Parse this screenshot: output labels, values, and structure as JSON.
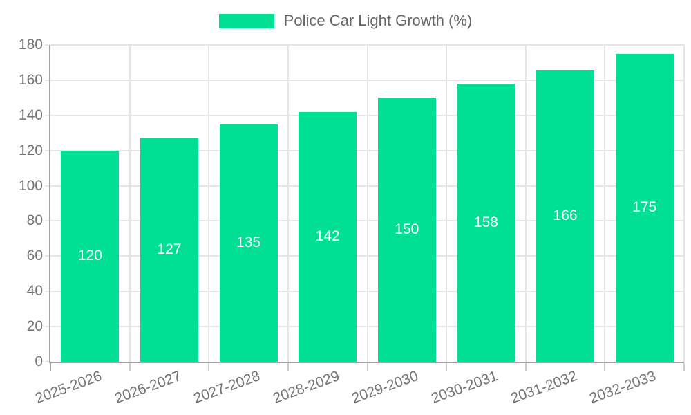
{
  "legend": {
    "label": "Police Car Light Growth (%)"
  },
  "chart_data": {
    "type": "bar",
    "title": "Police Car Light Growth (%)",
    "categories": [
      "2025-2026",
      "2026-2027",
      "2027-2028",
      "2028-2029",
      "2029-2030",
      "2030-2031",
      "2031-2032",
      "2032-2033"
    ],
    "values": [
      120,
      127,
      135,
      142,
      150,
      158,
      166,
      175
    ],
    "xlabel": "",
    "ylabel": "",
    "ylim": [
      0,
      180
    ],
    "yticks": [
      0,
      20,
      40,
      60,
      80,
      100,
      120,
      140,
      160,
      180
    ],
    "grid": true,
    "legend_position": "top-center",
    "value_labels": "inside-center",
    "colors": {
      "bar": "#00DF94",
      "value_label": "#ffffff",
      "grid": "#e6e6e6",
      "axis": "#a3a3a3",
      "x_tick_mark": "#cccccc",
      "tick_label": "#757575",
      "legend_text": "#666666"
    }
  }
}
